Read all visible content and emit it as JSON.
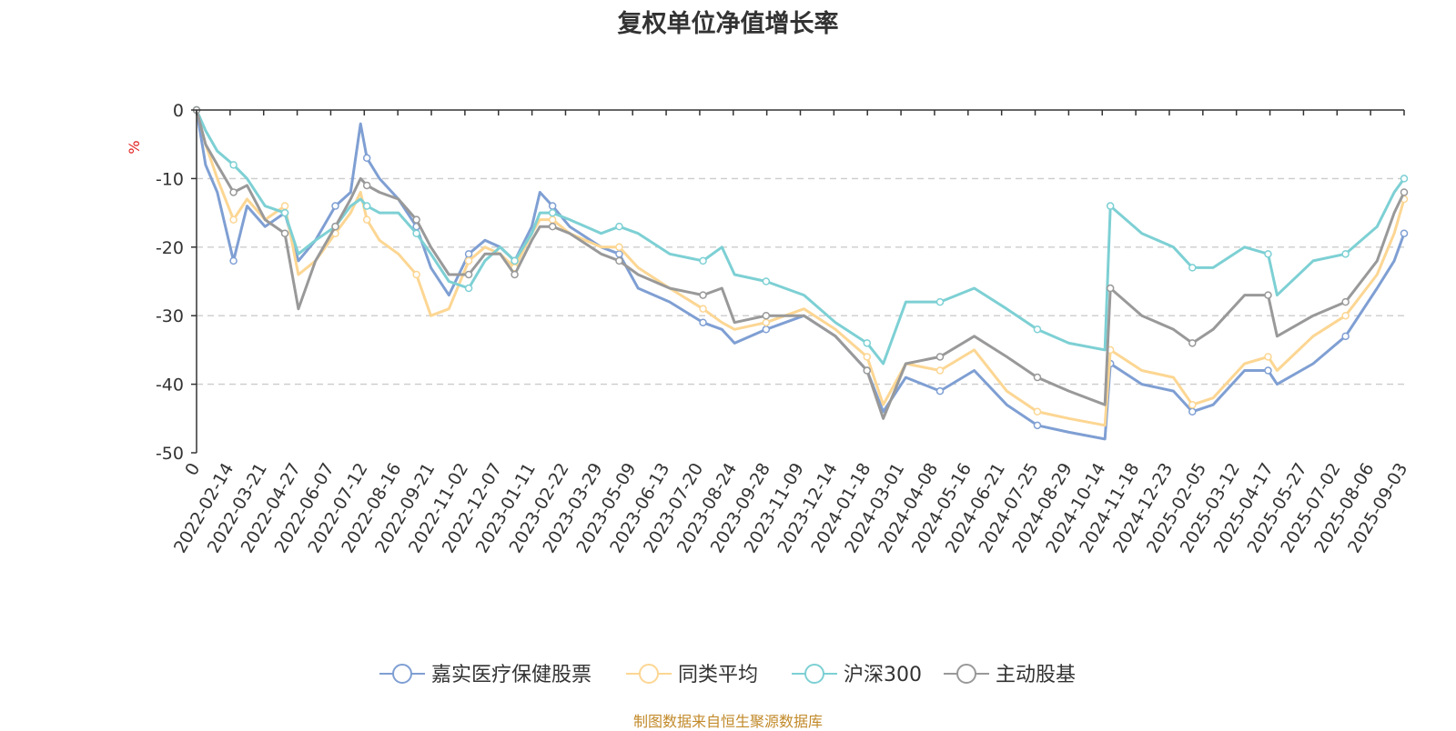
{
  "chart_data": {
    "type": "line",
    "title": "复权单位净值增长率",
    "ylabel": "%",
    "ylim": [
      -50,
      0
    ],
    "y_ticks": [
      0,
      -10,
      -20,
      -30,
      -40,
      -50
    ],
    "grid": "horizontal dashed",
    "legend_position": "bottom-center",
    "x_start": "2022-01-04",
    "x_end": "2025-09-05",
    "x_tick_labels": [
      "0",
      "2022-02-14",
      "2022-03-21",
      "2022-04-27",
      "2022-06-07",
      "2022-07-12",
      "2022-08-16",
      "2022-09-21",
      "2022-11-02",
      "2022-12-07",
      "2023-01-11",
      "2023-02-22",
      "2023-03-29",
      "2023-05-09",
      "2023-06-13",
      "2023-07-20",
      "2023-08-24",
      "2023-09-28",
      "2023-11-09",
      "2023-12-14",
      "2024-01-18",
      "2024-03-01",
      "2024-04-08",
      "2024-05-16",
      "2024-06-21",
      "2024-07-25",
      "2024-08-29",
      "2024-10-14",
      "2024-11-18",
      "2024-12-23",
      "2025-02-05",
      "2025-03-12",
      "2025-04-17",
      "2025-05-27",
      "2025-07-02",
      "2025-08-06",
      "2025-09-03"
    ],
    "series": [
      {
        "name": "嘉实医疗保健股票",
        "color": "#7f9fd3",
        "points": [
          [
            "2022-01-04",
            0
          ],
          [
            "2022-01-14",
            -8
          ],
          [
            "2022-01-27",
            -12
          ],
          [
            "2022-02-14",
            -22
          ],
          [
            "2022-03-01",
            -14
          ],
          [
            "2022-03-21",
            -17
          ],
          [
            "2022-04-12",
            -15
          ],
          [
            "2022-04-27",
            -22
          ],
          [
            "2022-05-16",
            -19
          ],
          [
            "2022-06-07",
            -14
          ],
          [
            "2022-06-24",
            -12
          ],
          [
            "2022-07-05",
            -2
          ],
          [
            "2022-07-12",
            -7
          ],
          [
            "2022-07-26",
            -10
          ],
          [
            "2022-08-16",
            -13
          ],
          [
            "2022-09-05",
            -17
          ],
          [
            "2022-09-21",
            -23
          ],
          [
            "2022-10-11",
            -27
          ],
          [
            "2022-11-02",
            -21
          ],
          [
            "2022-11-20",
            -19
          ],
          [
            "2022-12-07",
            -20
          ],
          [
            "2022-12-23",
            -22
          ],
          [
            "2023-01-11",
            -17
          ],
          [
            "2023-01-20",
            -12
          ],
          [
            "2023-02-03",
            -14
          ],
          [
            "2023-02-22",
            -17
          ],
          [
            "2023-03-29",
            -20
          ],
          [
            "2023-04-18",
            -21
          ],
          [
            "2023-05-09",
            -26
          ],
          [
            "2023-06-13",
            -28
          ],
          [
            "2023-07-20",
            -31
          ],
          [
            "2023-08-10",
            -32
          ],
          [
            "2023-08-24",
            -34
          ],
          [
            "2023-09-28",
            -32
          ],
          [
            "2023-11-09",
            -30
          ],
          [
            "2023-12-14",
            -33
          ],
          [
            "2024-01-18",
            -38
          ],
          [
            "2024-02-05",
            -44
          ],
          [
            "2024-03-01",
            -39
          ],
          [
            "2024-04-08",
            -41
          ],
          [
            "2024-05-16",
            -38
          ],
          [
            "2024-06-21",
            -43
          ],
          [
            "2024-07-25",
            -46
          ],
          [
            "2024-08-29",
            -47
          ],
          [
            "2024-10-08",
            -48
          ],
          [
            "2024-10-14",
            -37
          ],
          [
            "2024-11-18",
            -40
          ],
          [
            "2024-12-23",
            -41
          ],
          [
            "2025-01-13",
            -44
          ],
          [
            "2025-02-05",
            -43
          ],
          [
            "2025-03-12",
            -38
          ],
          [
            "2025-04-07",
            -38
          ],
          [
            "2025-04-17",
            -40
          ],
          [
            "2025-05-27",
            -37
          ],
          [
            "2025-07-02",
            -33
          ],
          [
            "2025-08-06",
            -26
          ],
          [
            "2025-08-25",
            -22
          ],
          [
            "2025-09-05",
            -18
          ]
        ]
      },
      {
        "name": "同类平均",
        "color": "#fcd693",
        "points": [
          [
            "2022-01-04",
            0
          ],
          [
            "2022-01-14",
            -5
          ],
          [
            "2022-01-27",
            -10
          ],
          [
            "2022-02-14",
            -16
          ],
          [
            "2022-03-01",
            -13
          ],
          [
            "2022-03-21",
            -16
          ],
          [
            "2022-04-12",
            -14
          ],
          [
            "2022-04-27",
            -24
          ],
          [
            "2022-05-16",
            -22
          ],
          [
            "2022-06-07",
            -18
          ],
          [
            "2022-06-24",
            -15
          ],
          [
            "2022-07-05",
            -12
          ],
          [
            "2022-07-12",
            -16
          ],
          [
            "2022-07-26",
            -19
          ],
          [
            "2022-08-16",
            -21
          ],
          [
            "2022-09-05",
            -24
          ],
          [
            "2022-09-21",
            -30
          ],
          [
            "2022-10-11",
            -29
          ],
          [
            "2022-11-02",
            -22
          ],
          [
            "2022-11-20",
            -20
          ],
          [
            "2022-12-07",
            -21
          ],
          [
            "2022-12-23",
            -23
          ],
          [
            "2023-01-11",
            -18
          ],
          [
            "2023-01-20",
            -16
          ],
          [
            "2023-02-03",
            -16
          ],
          [
            "2023-02-22",
            -18
          ],
          [
            "2023-03-29",
            -20
          ],
          [
            "2023-04-18",
            -20
          ],
          [
            "2023-05-09",
            -23
          ],
          [
            "2023-06-13",
            -26
          ],
          [
            "2023-07-20",
            -29
          ],
          [
            "2023-08-10",
            -31
          ],
          [
            "2023-08-24",
            -32
          ],
          [
            "2023-09-28",
            -31
          ],
          [
            "2023-11-09",
            -29
          ],
          [
            "2023-12-14",
            -32
          ],
          [
            "2024-01-18",
            -36
          ],
          [
            "2024-02-05",
            -43
          ],
          [
            "2024-03-01",
            -37
          ],
          [
            "2024-04-08",
            -38
          ],
          [
            "2024-05-16",
            -35
          ],
          [
            "2024-06-21",
            -41
          ],
          [
            "2024-07-25",
            -44
          ],
          [
            "2024-08-29",
            -45
          ],
          [
            "2024-10-08",
            -46
          ],
          [
            "2024-10-14",
            -35
          ],
          [
            "2024-11-18",
            -38
          ],
          [
            "2024-12-23",
            -39
          ],
          [
            "2025-01-13",
            -43
          ],
          [
            "2025-02-05",
            -42
          ],
          [
            "2025-03-12",
            -37
          ],
          [
            "2025-04-07",
            -36
          ],
          [
            "2025-04-17",
            -38
          ],
          [
            "2025-05-27",
            -33
          ],
          [
            "2025-07-02",
            -30
          ],
          [
            "2025-08-06",
            -24
          ],
          [
            "2025-08-25",
            -18
          ],
          [
            "2025-09-05",
            -13
          ]
        ]
      },
      {
        "name": "沪深300",
        "color": "#7dd0d4",
        "points": [
          [
            "2022-01-04",
            0
          ],
          [
            "2022-01-14",
            -3
          ],
          [
            "2022-01-27",
            -6
          ],
          [
            "2022-02-14",
            -8
          ],
          [
            "2022-03-01",
            -10
          ],
          [
            "2022-03-21",
            -14
          ],
          [
            "2022-04-12",
            -15
          ],
          [
            "2022-04-27",
            -21
          ],
          [
            "2022-05-16",
            -19
          ],
          [
            "2022-06-07",
            -17
          ],
          [
            "2022-06-24",
            -14
          ],
          [
            "2022-07-05",
            -13
          ],
          [
            "2022-07-12",
            -14
          ],
          [
            "2022-07-26",
            -15
          ],
          [
            "2022-08-16",
            -15
          ],
          [
            "2022-09-05",
            -18
          ],
          [
            "2022-09-21",
            -21
          ],
          [
            "2022-10-11",
            -25
          ],
          [
            "2022-11-02",
            -26
          ],
          [
            "2022-11-20",
            -22
          ],
          [
            "2022-12-07",
            -20
          ],
          [
            "2022-12-23",
            -22
          ],
          [
            "2023-01-11",
            -18
          ],
          [
            "2023-01-20",
            -15
          ],
          [
            "2023-02-03",
            -15
          ],
          [
            "2023-02-22",
            -16
          ],
          [
            "2023-03-29",
            -18
          ],
          [
            "2023-04-18",
            -17
          ],
          [
            "2023-05-09",
            -18
          ],
          [
            "2023-06-13",
            -21
          ],
          [
            "2023-07-20",
            -22
          ],
          [
            "2023-08-10",
            -20
          ],
          [
            "2023-08-24",
            -24
          ],
          [
            "2023-09-28",
            -25
          ],
          [
            "2023-11-09",
            -27
          ],
          [
            "2023-12-14",
            -31
          ],
          [
            "2024-01-18",
            -34
          ],
          [
            "2024-02-05",
            -37
          ],
          [
            "2024-03-01",
            -28
          ],
          [
            "2024-04-08",
            -28
          ],
          [
            "2024-05-16",
            -26
          ],
          [
            "2024-06-21",
            -29
          ],
          [
            "2024-07-25",
            -32
          ],
          [
            "2024-08-29",
            -34
          ],
          [
            "2024-10-08",
            -35
          ],
          [
            "2024-10-14",
            -14
          ],
          [
            "2024-11-18",
            -18
          ],
          [
            "2024-12-23",
            -20
          ],
          [
            "2025-01-13",
            -23
          ],
          [
            "2025-02-05",
            -23
          ],
          [
            "2025-03-12",
            -20
          ],
          [
            "2025-04-07",
            -21
          ],
          [
            "2025-04-17",
            -27
          ],
          [
            "2025-05-27",
            -22
          ],
          [
            "2025-07-02",
            -21
          ],
          [
            "2025-08-06",
            -17
          ],
          [
            "2025-08-25",
            -12
          ],
          [
            "2025-09-05",
            -10
          ]
        ]
      },
      {
        "name": "主动股基",
        "color": "#999999",
        "points": [
          [
            "2022-01-04",
            0
          ],
          [
            "2022-01-14",
            -5
          ],
          [
            "2022-01-27",
            -8
          ],
          [
            "2022-02-14",
            -12
          ],
          [
            "2022-03-01",
            -11
          ],
          [
            "2022-03-21",
            -16
          ],
          [
            "2022-04-12",
            -18
          ],
          [
            "2022-04-27",
            -29
          ],
          [
            "2022-05-16",
            -22
          ],
          [
            "2022-06-07",
            -17
          ],
          [
            "2022-06-24",
            -13
          ],
          [
            "2022-07-05",
            -10
          ],
          [
            "2022-07-12",
            -11
          ],
          [
            "2022-07-26",
            -12
          ],
          [
            "2022-08-16",
            -13
          ],
          [
            "2022-09-05",
            -16
          ],
          [
            "2022-09-21",
            -20
          ],
          [
            "2022-10-11",
            -24
          ],
          [
            "2022-11-02",
            -24
          ],
          [
            "2022-11-20",
            -21
          ],
          [
            "2022-12-07",
            -21
          ],
          [
            "2022-12-23",
            -24
          ],
          [
            "2023-01-11",
            -19
          ],
          [
            "2023-01-20",
            -17
          ],
          [
            "2023-02-03",
            -17
          ],
          [
            "2023-02-22",
            -18
          ],
          [
            "2023-03-29",
            -21
          ],
          [
            "2023-04-18",
            -22
          ],
          [
            "2023-05-09",
            -24
          ],
          [
            "2023-06-13",
            -26
          ],
          [
            "2023-07-20",
            -27
          ],
          [
            "2023-08-10",
            -26
          ],
          [
            "2023-08-24",
            -31
          ],
          [
            "2023-09-28",
            -30
          ],
          [
            "2023-11-09",
            -30
          ],
          [
            "2023-12-14",
            -33
          ],
          [
            "2024-01-18",
            -38
          ],
          [
            "2024-02-05",
            -45
          ],
          [
            "2024-03-01",
            -37
          ],
          [
            "2024-04-08",
            -36
          ],
          [
            "2024-05-16",
            -33
          ],
          [
            "2024-06-21",
            -36
          ],
          [
            "2024-07-25",
            -39
          ],
          [
            "2024-08-29",
            -41
          ],
          [
            "2024-10-08",
            -43
          ],
          [
            "2024-10-14",
            -26
          ],
          [
            "2024-11-18",
            -30
          ],
          [
            "2024-12-23",
            -32
          ],
          [
            "2025-01-13",
            -34
          ],
          [
            "2025-02-05",
            -32
          ],
          [
            "2025-03-12",
            -27
          ],
          [
            "2025-04-07",
            -27
          ],
          [
            "2025-04-17",
            -33
          ],
          [
            "2025-05-27",
            -30
          ],
          [
            "2025-07-02",
            -28
          ],
          [
            "2025-08-06",
            -22
          ],
          [
            "2025-08-25",
            -15
          ],
          [
            "2025-09-05",
            -12
          ]
        ]
      }
    ]
  },
  "footer": {
    "source": "制图数据来自恒生聚源数据库"
  }
}
